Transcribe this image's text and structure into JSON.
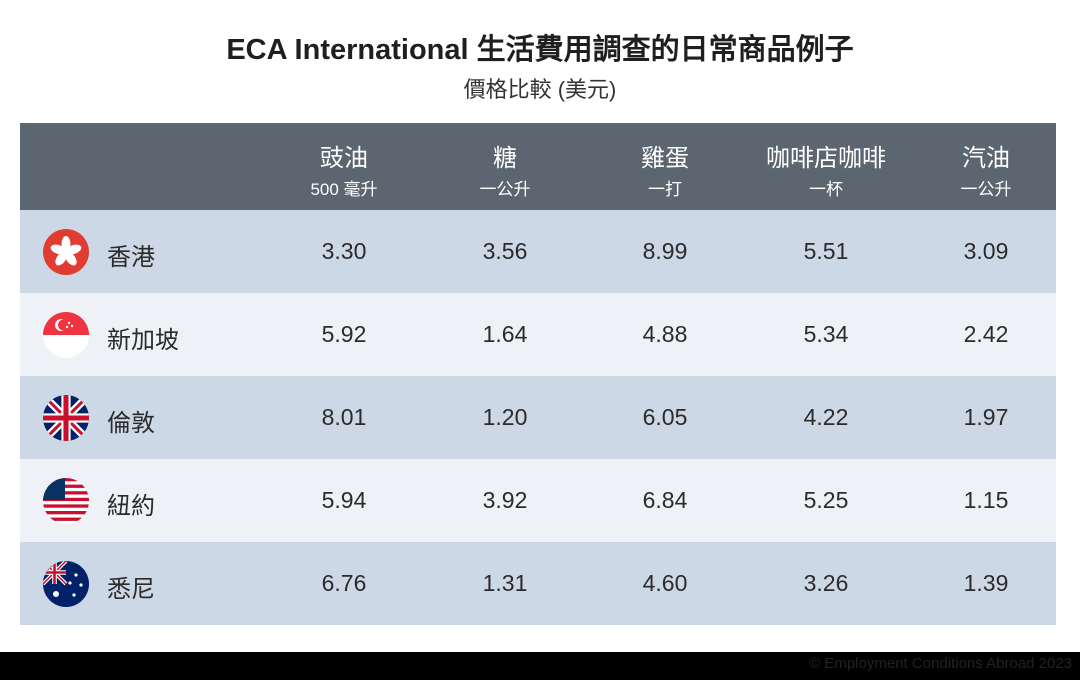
{
  "header": {
    "title": "ECA International 生活費用調查的日常商品例子",
    "subtitle": "價格比較 (美元)"
  },
  "table": {
    "columns": [
      {
        "name": "豉油",
        "unit": "500 毫升"
      },
      {
        "name": "糖",
        "unit": "一公升"
      },
      {
        "name": "雞蛋",
        "unit": "一打"
      },
      {
        "name": "咖啡店咖啡",
        "unit": "一杯"
      },
      {
        "name": "汽油",
        "unit": "一公升"
      }
    ],
    "rows": [
      {
        "city": "香港",
        "values": [
          "3.30",
          "3.56",
          "8.99",
          "5.51",
          "3.09"
        ]
      },
      {
        "city": "新加坡",
        "values": [
          "5.92",
          "1.64",
          "4.88",
          "5.34",
          "2.42"
        ]
      },
      {
        "city": "倫敦",
        "values": [
          "8.01",
          "1.20",
          "6.05",
          "4.22",
          "1.97"
        ]
      },
      {
        "city": "紐約",
        "values": [
          "5.94",
          "3.92",
          "6.84",
          "5.25",
          "1.15"
        ]
      },
      {
        "city": "悉尼",
        "values": [
          "6.76",
          "1.31",
          "4.60",
          "3.26",
          "1.39"
        ]
      }
    ]
  },
  "footer": {
    "credit": "© Employment Conditions Abroad 2023"
  }
}
